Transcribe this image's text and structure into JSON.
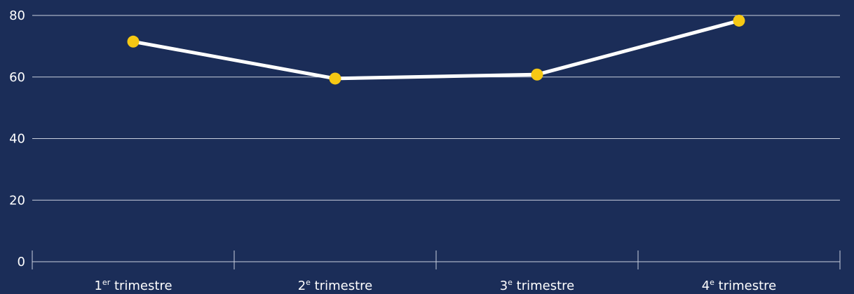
{
  "colors": {
    "background": "#1b2d58",
    "line": "#ffffff",
    "marker": "#f5c814",
    "grid": "#c9d0de",
    "text": "#ffffff"
  },
  "chart_data": {
    "type": "line",
    "title": "",
    "xlabel": "",
    "ylabel": "",
    "categories": [
      {
        "num": "1",
        "sup": "er",
        "rest": " trimestre"
      },
      {
        "num": "2",
        "sup": "e",
        "rest": " trimestre"
      },
      {
        "num": "3",
        "sup": "e",
        "rest": " trimestre"
      },
      {
        "num": "4",
        "sup": "e",
        "rest": " trimestre"
      }
    ],
    "series": [
      {
        "values": [
          71.5,
          59.5,
          60.8,
          78.3
        ]
      }
    ],
    "ylim": [
      0,
      85
    ],
    "yticks": [
      0,
      20,
      40,
      60,
      80
    ],
    "grid": true,
    "legend": "none"
  }
}
